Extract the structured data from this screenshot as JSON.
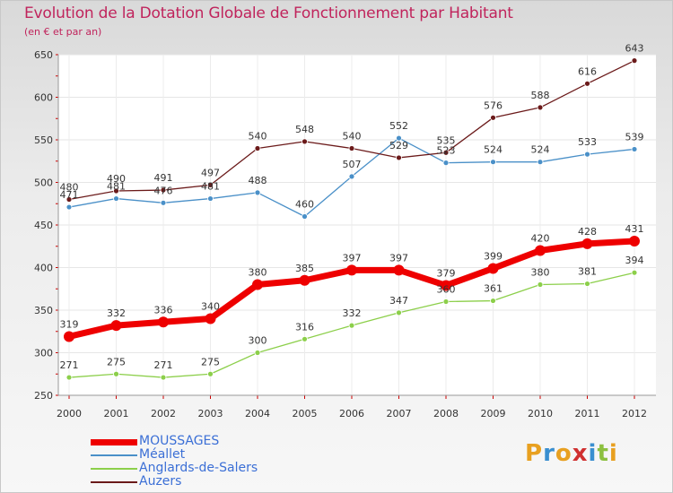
{
  "header": {
    "title": "Evolution de la Dotation Globale de Fonctionnement par Habitant",
    "subtitle": "(en € et par an)"
  },
  "chart_data": {
    "type": "line",
    "title": "Evolution de la Dotation Globale de Fonctionnement par Habitant",
    "subtitle": "(en € et par an)",
    "xlabel": "",
    "ylabel": "",
    "categories": [
      "2000",
      "2001",
      "2002",
      "2003",
      "2004",
      "2005",
      "2006",
      "2007",
      "2008",
      "2009",
      "2010",
      "2011",
      "2012"
    ],
    "ylim": [
      250,
      650
    ],
    "yticks": [
      250,
      300,
      350,
      400,
      450,
      500,
      550,
      600,
      650
    ],
    "grid": true,
    "legend_position": "bottom-left",
    "series": [
      {
        "name": "MOUSSAGES",
        "color": "#ee0000",
        "values": [
          319,
          332,
          336,
          340,
          380,
          385,
          397,
          397,
          379,
          399,
          420,
          428,
          431
        ]
      },
      {
        "name": "Méallet",
        "color": "#4a90c8",
        "values": [
          471,
          481,
          476,
          481,
          488,
          460,
          507,
          552,
          523,
          524,
          524,
          533,
          539
        ]
      },
      {
        "name": "Anglards-de-Salers",
        "color": "#8ccf4a",
        "values": [
          271,
          275,
          271,
          275,
          300,
          316,
          332,
          347,
          360,
          361,
          380,
          381,
          394
        ]
      },
      {
        "name": "Auzers",
        "color": "#6b1a1a",
        "values": [
          480,
          490,
          491,
          497,
          540,
          548,
          540,
          529,
          535,
          576,
          588,
          616,
          643
        ]
      }
    ]
  },
  "logo": {
    "text": "Proxiti"
  }
}
